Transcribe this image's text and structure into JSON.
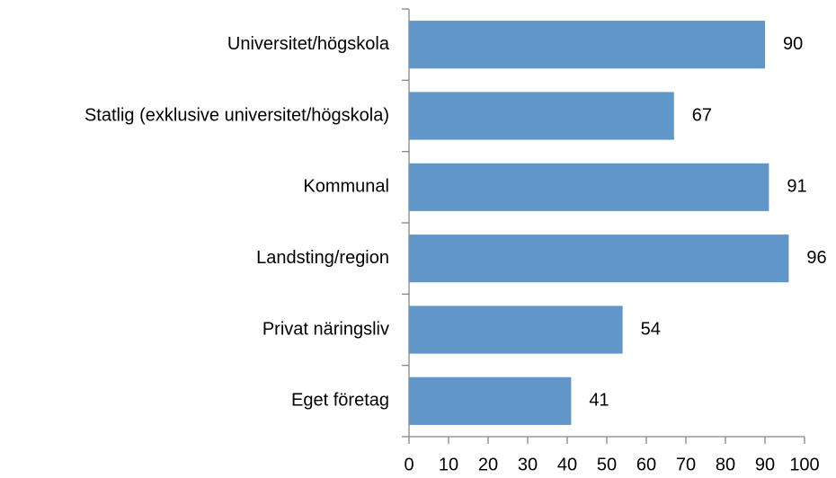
{
  "chart_data": {
    "type": "bar",
    "orientation": "horizontal",
    "categories": [
      "Universitet/högskola",
      "Statlig (exklusive universitet/högskola)",
      "Kommunal",
      "Landsting/region",
      "Privat näringsliv",
      "Eget företag"
    ],
    "values": [
      90,
      67,
      91,
      96,
      54,
      41
    ],
    "color": "#6096c8",
    "xlim": [
      0,
      100
    ],
    "xticks": [
      0,
      10,
      20,
      30,
      40,
      50,
      60,
      70,
      80,
      90,
      100
    ],
    "grid": false
  }
}
